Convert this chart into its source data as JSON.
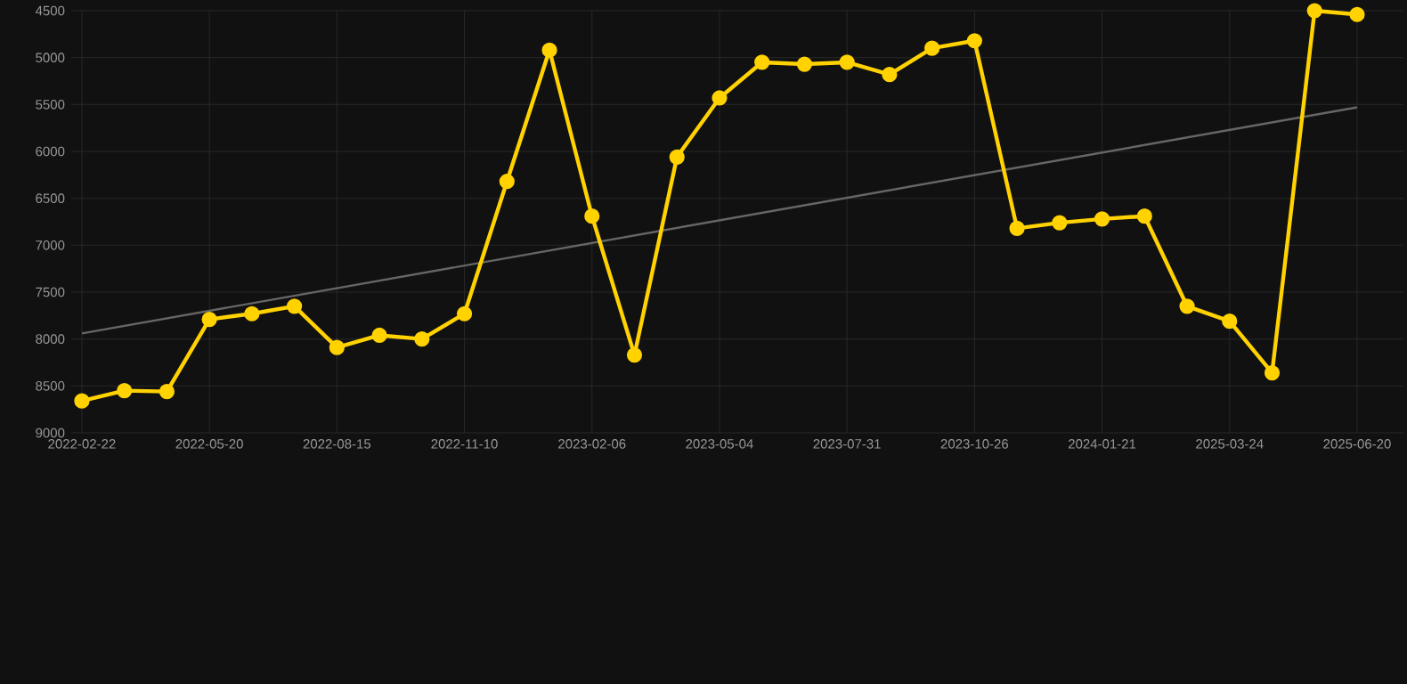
{
  "chart_data": {
    "type": "line",
    "categories": [
      "2022-02-22",
      null,
      null,
      "2022-05-20",
      null,
      null,
      "2022-08-15",
      null,
      null,
      "2022-11-10",
      null,
      null,
      "2023-02-06",
      null,
      null,
      "2023-05-04",
      null,
      null,
      "2023-07-31",
      null,
      null,
      "2023-10-26",
      null,
      null,
      "2024-01-21",
      null,
      null,
      "2025-03-24",
      null,
      null,
      "2025-06-20"
    ],
    "series": [
      {
        "color": "#ffd200",
        "marker": "circle",
        "values": [
          8660,
          8550,
          8560,
          7790,
          7730,
          7650,
          8090,
          7960,
          8000,
          7730,
          6320,
          4920,
          6690,
          8170,
          6060,
          5430,
          5050,
          5070,
          5050,
          5180,
          4900,
          4820,
          6820,
          6760,
          6720,
          6690,
          7650,
          7810,
          8360,
          4500,
          4540
        ]
      },
      {
        "color": "#666666",
        "marker": "none",
        "values": [
          7940,
          null,
          null,
          null,
          null,
          null,
          null,
          null,
          null,
          null,
          null,
          null,
          null,
          null,
          null,
          null,
          null,
          null,
          null,
          null,
          null,
          null,
          null,
          null,
          null,
          null,
          null,
          null,
          null,
          null,
          5530
        ]
      }
    ],
    "ylim": [
      9000,
      4500
    ],
    "yticks": [
      4500,
      5000,
      5500,
      6000,
      6500,
      7000,
      7500,
      8000,
      8500,
      9000
    ],
    "grid": true
  }
}
